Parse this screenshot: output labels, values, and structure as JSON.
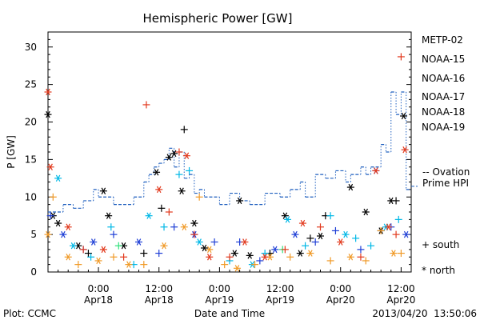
{
  "chart_data": {
    "type": "scatter",
    "title": "Hemispheric Power [GW]",
    "xlabel": "Date and Time",
    "ylabel": "P [GW]",
    "xlim": [
      "2013-04-17T14:00",
      "2013-04-20T14:00"
    ],
    "ylim": [
      0,
      32
    ],
    "yticks": [
      0,
      5,
      10,
      15,
      20,
      25,
      30
    ],
    "xticks": [
      {
        "t": "2013-04-18T00:00",
        "line1": "0:00",
        "line2": "Apr18"
      },
      {
        "t": "2013-04-18T12:00",
        "line1": "12:00",
        "line2": "Apr18"
      },
      {
        "t": "2013-04-19T00:00",
        "line1": "0:00",
        "line2": "Apr19"
      },
      {
        "t": "2013-04-19T12:00",
        "line1": "12:00",
        "line2": "Apr19"
      },
      {
        "t": "2013-04-20T00:00",
        "line1": "0:00",
        "line2": "Apr20"
      },
      {
        "t": "2013-04-20T12:00",
        "line1": "12:00",
        "line2": "Apr20"
      }
    ],
    "grid": false,
    "legend": {
      "position": "right",
      "entries": [
        {
          "label": "METP-02",
          "color": "#000000"
        },
        {
          "label": "NOAA-15",
          "color": "#1f3fd6"
        },
        {
          "label": "NOAA-16",
          "color": "#00b8e6"
        },
        {
          "label": "NOAA-17",
          "color": "#2ee07a"
        },
        {
          "label": "NOAA-18",
          "color": "#f09a28"
        },
        {
          "label": "NOAA-19",
          "color": "#e23a1e"
        }
      ],
      "ovation_label": [
        "-- Ovation",
        "Prime HPI"
      ],
      "ovation_color": "#1f5fbf",
      "marker_south": "+ south",
      "marker_north": "* north"
    },
    "series": [
      {
        "name": "METP-02",
        "color": "#000000",
        "points": [
          [
            "2013-04-17T14:00",
            21,
            "n"
          ],
          [
            "2013-04-17T15:00",
            7.5,
            "n"
          ],
          [
            "2013-04-17T16:00",
            6.5,
            "n"
          ],
          [
            "2013-04-17T20:00",
            3.5,
            "n"
          ],
          [
            "2013-04-17T22:00",
            2.5,
            "s"
          ],
          [
            "2013-04-18T01:00",
            10.8,
            "n"
          ],
          [
            "2013-04-18T02:00",
            7.5,
            "n"
          ],
          [
            "2013-04-18T05:00",
            3.5,
            "n"
          ],
          [
            "2013-04-18T09:00",
            2.5,
            "s"
          ],
          [
            "2013-04-18T11:30",
            13.3,
            "n"
          ],
          [
            "2013-04-18T12:30",
            8.5,
            "s"
          ],
          [
            "2013-04-18T14:00",
            15.3,
            "n"
          ],
          [
            "2013-04-18T15:00",
            15.8,
            "n"
          ],
          [
            "2013-04-18T16:30",
            10.8,
            "n"
          ],
          [
            "2013-04-18T17:00",
            19,
            "s"
          ],
          [
            "2013-04-18T19:00",
            6.5,
            "n"
          ],
          [
            "2013-04-18T21:00",
            3.2,
            "n"
          ],
          [
            "2013-04-19T03:00",
            2.5,
            "n"
          ],
          [
            "2013-04-19T04:00",
            9.5,
            "n"
          ],
          [
            "2013-04-19T06:00",
            2.2,
            "n"
          ],
          [
            "2013-04-19T10:00",
            2.5,
            "s"
          ],
          [
            "2013-04-19T13:00",
            7.5,
            "n"
          ],
          [
            "2013-04-19T16:00",
            2.5,
            "n"
          ],
          [
            "2013-04-19T18:00",
            4.5,
            "s"
          ],
          [
            "2013-04-19T20:00",
            4.8,
            "n"
          ],
          [
            "2013-04-19T21:00",
            7.5,
            "s"
          ],
          [
            "2013-04-20T02:00",
            11.3,
            "n"
          ],
          [
            "2013-04-20T05:00",
            8,
            "n"
          ],
          [
            "2013-04-20T08:00",
            5.5,
            "n"
          ],
          [
            "2013-04-20T10:00",
            9.5,
            "n"
          ],
          [
            "2013-04-20T11:00",
            9.5,
            "s"
          ],
          [
            "2013-04-20T12:30",
            20.8,
            "n"
          ]
        ]
      },
      {
        "name": "NOAA-15",
        "color": "#1f3fd6",
        "points": [
          [
            "2013-04-17T14:30",
            7.5,
            "s"
          ],
          [
            "2013-04-17T17:00",
            5,
            "n"
          ],
          [
            "2013-04-17T21:00",
            3,
            "s"
          ],
          [
            "2013-04-17T23:00",
            4,
            "n"
          ],
          [
            "2013-04-18T03:00",
            5,
            "s"
          ],
          [
            "2013-04-18T08:00",
            4,
            "n"
          ],
          [
            "2013-04-18T12:00",
            2.5,
            "s"
          ],
          [
            "2013-04-18T15:00",
            6,
            "s"
          ],
          [
            "2013-04-18T19:00",
            5,
            "n"
          ],
          [
            "2013-04-18T23:00",
            4,
            "s"
          ],
          [
            "2013-04-19T04:00",
            4,
            "s"
          ],
          [
            "2013-04-19T08:00",
            1.5,
            "s"
          ],
          [
            "2013-04-19T11:00",
            3,
            "n"
          ],
          [
            "2013-04-19T15:00",
            5,
            "n"
          ],
          [
            "2013-04-19T19:00",
            4,
            "s"
          ],
          [
            "2013-04-19T23:00",
            5.5,
            "s"
          ],
          [
            "2013-04-20T04:00",
            3,
            "s"
          ],
          [
            "2013-04-20T07:00",
            13.5,
            "n"
          ],
          [
            "2013-04-20T10:00",
            6,
            "s"
          ],
          [
            "2013-04-20T13:00",
            5,
            "n"
          ]
        ]
      },
      {
        "name": "NOAA-16",
        "color": "#00b8e6",
        "points": [
          [
            "2013-04-17T16:00",
            12.5,
            "n"
          ],
          [
            "2013-04-17T19:00",
            3.5,
            "n"
          ],
          [
            "2013-04-17T22:30",
            2,
            "s"
          ],
          [
            "2013-04-18T02:30",
            6,
            "s"
          ],
          [
            "2013-04-18T07:00",
            1,
            "s"
          ],
          [
            "2013-04-18T10:00",
            7.5,
            "n"
          ],
          [
            "2013-04-18T13:00",
            6,
            "s"
          ],
          [
            "2013-04-18T16:00",
            13,
            "s"
          ],
          [
            "2013-04-18T18:00",
            13.5,
            "s"
          ],
          [
            "2013-04-18T20:00",
            4,
            "n"
          ],
          [
            "2013-04-19T02:00",
            1.5,
            "s"
          ],
          [
            "2013-04-19T06:30",
            1,
            "n"
          ],
          [
            "2013-04-19T09:00",
            2.5,
            "s"
          ],
          [
            "2013-04-19T13:30",
            7,
            "n"
          ],
          [
            "2013-04-19T17:00",
            3.5,
            "s"
          ],
          [
            "2013-04-19T22:00",
            7.5,
            "s"
          ],
          [
            "2013-04-20T01:00",
            5,
            "n"
          ],
          [
            "2013-04-20T03:00",
            4.5,
            "s"
          ],
          [
            "2013-04-20T06:00",
            3.5,
            "s"
          ],
          [
            "2013-04-20T09:00",
            6,
            "n"
          ],
          [
            "2013-04-20T11:30",
            7,
            "s"
          ]
        ]
      },
      {
        "name": "NOAA-17",
        "color": "#2ee07a",
        "points": [
          [
            "2013-04-18T04:00",
            3.5,
            "s"
          ],
          [
            "2013-04-19T12:30",
            3,
            "s"
          ]
        ]
      },
      {
        "name": "NOAA-18",
        "color": "#f09a28",
        "points": [
          [
            "2013-04-17T14:00",
            5,
            "n"
          ],
          [
            "2013-04-17T15:00",
            10,
            "s"
          ],
          [
            "2013-04-17T18:00",
            2,
            "n"
          ],
          [
            "2013-04-17T20:00",
            1,
            "s"
          ],
          [
            "2013-04-18T00:00",
            1.5,
            "n"
          ],
          [
            "2013-04-18T03:00",
            2,
            "s"
          ],
          [
            "2013-04-18T06:00",
            1,
            "n"
          ],
          [
            "2013-04-18T09:00",
            1,
            "s"
          ],
          [
            "2013-04-18T13:00",
            3.5,
            "n"
          ],
          [
            "2013-04-18T17:00",
            6,
            "n"
          ],
          [
            "2013-04-18T20:00",
            10,
            "s"
          ],
          [
            "2013-04-18T22:00",
            3,
            "n"
          ],
          [
            "2013-04-19T01:00",
            1,
            "s"
          ],
          [
            "2013-04-19T03:30",
            0.5,
            "n"
          ],
          [
            "2013-04-19T07:00",
            1,
            "s"
          ],
          [
            "2013-04-19T10:00",
            2,
            "n"
          ],
          [
            "2013-04-19T14:00",
            2,
            "s"
          ],
          [
            "2013-04-19T18:00",
            2.5,
            "n"
          ],
          [
            "2013-04-19T22:00",
            1.5,
            "s"
          ],
          [
            "2013-04-20T02:00",
            2,
            "n"
          ],
          [
            "2013-04-20T05:00",
            1.5,
            "s"
          ],
          [
            "2013-04-20T08:00",
            5.5,
            "s"
          ],
          [
            "2013-04-20T10:30",
            2.5,
            "n"
          ],
          [
            "2013-04-20T12:00",
            2.5,
            "s"
          ]
        ]
      },
      {
        "name": "NOAA-19",
        "color": "#e23a1e",
        "points": [
          [
            "2013-04-17T14:00",
            24,
            "n"
          ],
          [
            "2013-04-17T14:30",
            14,
            "n"
          ],
          [
            "2013-04-17T18:00",
            6,
            "n"
          ],
          [
            "2013-04-17T21:00",
            3,
            "s"
          ],
          [
            "2013-04-18T01:00",
            3,
            "n"
          ],
          [
            "2013-04-18T05:00",
            2,
            "s"
          ],
          [
            "2013-04-18T09:30",
            22.3,
            "s"
          ],
          [
            "2013-04-18T12:00",
            11,
            "n"
          ],
          [
            "2013-04-18T14:00",
            8,
            "s"
          ],
          [
            "2013-04-18T16:00",
            16,
            "s"
          ],
          [
            "2013-04-18T17:30",
            15.5,
            "n"
          ],
          [
            "2013-04-18T19:00",
            5,
            "s"
          ],
          [
            "2013-04-18T22:00",
            2,
            "n"
          ],
          [
            "2013-04-19T02:00",
            2,
            "s"
          ],
          [
            "2013-04-19T05:00",
            4,
            "n"
          ],
          [
            "2013-04-19T09:00",
            2,
            "n"
          ],
          [
            "2013-04-19T13:00",
            3,
            "s"
          ],
          [
            "2013-04-19T16:30",
            6.5,
            "n"
          ],
          [
            "2013-04-19T20:00",
            6,
            "s"
          ],
          [
            "2013-04-20T00:00",
            4,
            "n"
          ],
          [
            "2013-04-20T04:00",
            2,
            "s"
          ],
          [
            "2013-04-20T07:00",
            13.5,
            "n"
          ],
          [
            "2013-04-20T09:30",
            6,
            "n"
          ],
          [
            "2013-04-20T11:00",
            5,
            "s"
          ],
          [
            "2013-04-20T12:00",
            28.7,
            "s"
          ],
          [
            "2013-04-20T12:45",
            16.3,
            "n"
          ]
        ]
      }
    ],
    "ovation_prime_hpi": [
      [
        "2013-04-17T14:00",
        8
      ],
      [
        "2013-04-17T17:00",
        9
      ],
      [
        "2013-04-17T19:00",
        8.5
      ],
      [
        "2013-04-17T21:00",
        9.5
      ],
      [
        "2013-04-17T23:00",
        11
      ],
      [
        "2013-04-18T00:00",
        10
      ],
      [
        "2013-04-18T03:00",
        9
      ],
      [
        "2013-04-18T07:00",
        10
      ],
      [
        "2013-04-18T09:00",
        12
      ],
      [
        "2013-04-18T10:00",
        13
      ],
      [
        "2013-04-18T11:00",
        14
      ],
      [
        "2013-04-18T12:00",
        14.5
      ],
      [
        "2013-04-18T13:00",
        15
      ],
      [
        "2013-04-18T14:00",
        16.5
      ],
      [
        "2013-04-18T15:00",
        14
      ],
      [
        "2013-04-18T16:00",
        16
      ],
      [
        "2013-04-18T17:00",
        12.5
      ],
      [
        "2013-04-18T18:00",
        13
      ],
      [
        "2013-04-18T19:00",
        10.5
      ],
      [
        "2013-04-18T20:00",
        11
      ],
      [
        "2013-04-18T21:00",
        10
      ],
      [
        "2013-04-19T00:00",
        9
      ],
      [
        "2013-04-19T02:00",
        10.5
      ],
      [
        "2013-04-19T04:00",
        9.5
      ],
      [
        "2013-04-19T06:00",
        9
      ],
      [
        "2013-04-19T09:00",
        10.5
      ],
      [
        "2013-04-19T12:00",
        10
      ],
      [
        "2013-04-19T14:00",
        11
      ],
      [
        "2013-04-19T16:00",
        12
      ],
      [
        "2013-04-19T17:00",
        10
      ],
      [
        "2013-04-19T19:00",
        13
      ],
      [
        "2013-04-19T21:00",
        12.5
      ],
      [
        "2013-04-19T23:00",
        13.5
      ],
      [
        "2013-04-20T01:00",
        12
      ],
      [
        "2013-04-20T02:00",
        13
      ],
      [
        "2013-04-20T04:00",
        14
      ],
      [
        "2013-04-20T05:00",
        13
      ],
      [
        "2013-04-20T06:00",
        14
      ],
      [
        "2013-04-20T08:00",
        17
      ],
      [
        "2013-04-20T09:00",
        16
      ],
      [
        "2013-04-20T10:00",
        24
      ],
      [
        "2013-04-20T11:00",
        21
      ],
      [
        "2013-04-20T12:00",
        24
      ],
      [
        "2013-04-20T13:00",
        11
      ]
    ]
  },
  "footer": {
    "left": "Plot: CCMC",
    "center": "Date and Time",
    "right": "2013/04/20  13:50:06"
  }
}
